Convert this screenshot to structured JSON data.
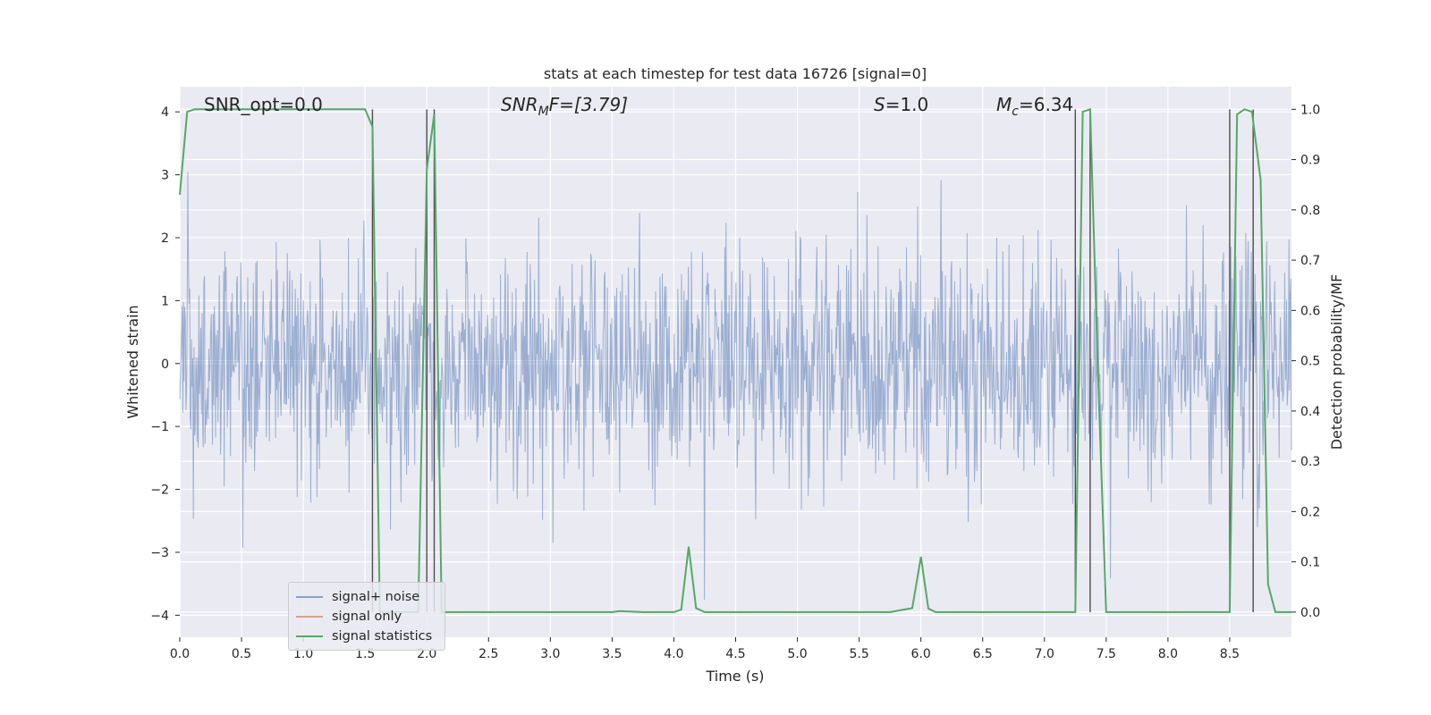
{
  "chart_data": {
    "type": "line",
    "title": "stats at each timestep for test data 16726 [signal=0]",
    "xlabel": "Time (s)",
    "ylabel_left": "Whitened strain",
    "ylabel_right": "Detection probability/MF",
    "xlim": [
      0.0,
      9.0
    ],
    "ylim_left": [
      -4.35,
      4.4
    ],
    "ylim_right": [
      -0.05,
      1.045
    ],
    "x_ticks": [
      "0.0",
      "0.5",
      "1.0",
      "1.5",
      "2.0",
      "2.5",
      "3.0",
      "3.5",
      "4.0",
      "4.5",
      "5.0",
      "5.5",
      "6.0",
      "6.5",
      "7.0",
      "7.5",
      "8.0",
      "8.5"
    ],
    "y_ticks_left": [
      "−4",
      "−3",
      "−2",
      "−1",
      "0",
      "1",
      "2",
      "3",
      "4"
    ],
    "y_ticks_right": [
      "0.0",
      "0.1",
      "0.2",
      "0.3",
      "0.4",
      "0.5",
      "0.6",
      "0.7",
      "0.8",
      "0.9",
      "1.0"
    ],
    "grid": true,
    "legend_position": "lower-left",
    "colors": {
      "signal_noise": "#4c72b0",
      "signal_only": "#dd8452",
      "signal_statistics": "#55a868",
      "vlines": "#4d4d4d",
      "background": "#eaeaf2",
      "grid": "#ffffff"
    },
    "annotations": {
      "snr_opt": "SNR_opt=0.0",
      "snr_mf_base": "SNR",
      "snr_mf_sub": "M",
      "snr_mf_rest": "F=[3.79]",
      "s_italic": "S",
      "s_rest": "=1.0",
      "mc_base": "M",
      "mc_sub": "c",
      "mc_rest": "=6.34"
    },
    "noise_envelope": {
      "description_free": "",
      "typical_abs_max": 2.3,
      "peak_abs": 3.95,
      "duration": 9.0
    },
    "series": [
      {
        "name": "signal+ noise",
        "style": "dense-noise"
      },
      {
        "name": "signal only",
        "x": [],
        "y": []
      },
      {
        "name": "signal statistics",
        "axis": "right",
        "x": [
          0.0,
          0.06,
          0.12,
          0.25,
          0.5,
          0.75,
          1.0,
          1.25,
          1.5,
          1.56,
          1.62,
          1.68,
          1.75,
          1.81,
          1.87,
          1.93,
          2.0,
          2.06,
          2.12,
          2.18,
          2.25,
          2.5,
          2.75,
          3.0,
          3.25,
          3.5,
          3.56,
          3.75,
          4.0,
          4.06,
          4.12,
          4.18,
          4.25,
          4.5,
          4.75,
          5.0,
          5.25,
          5.5,
          5.75,
          5.93,
          6.0,
          6.06,
          6.12,
          6.25,
          6.5,
          6.75,
          7.0,
          7.25,
          7.31,
          7.37,
          7.43,
          7.5,
          7.75,
          8.0,
          8.25,
          8.5,
          8.56,
          8.62,
          8.68,
          8.75,
          8.81,
          8.87,
          8.93,
          9.0
        ],
        "y": [
          0.83,
          0.995,
          1.0,
          1.0,
          1.0,
          1.0,
          1.0,
          1.0,
          1.0,
          0.965,
          0.0,
          0.0,
          0.0,
          0.0,
          0.0,
          0.0,
          0.88,
          0.99,
          0.0,
          0.0,
          0.0,
          0.0,
          0.0,
          0.0,
          0.0,
          0.0,
          0.002,
          0.0,
          0.0,
          0.005,
          0.13,
          0.008,
          0.0,
          0.0,
          0.0,
          0.0,
          0.0,
          0.0,
          0.0,
          0.008,
          0.11,
          0.007,
          0.0,
          0.0,
          0.0,
          0.0,
          0.0,
          0.0,
          0.995,
          1.0,
          0.5,
          0.0,
          0.0,
          0.0,
          0.0,
          0.0,
          0.99,
          1.0,
          0.995,
          0.86,
          0.055,
          0.0,
          0.0,
          0.0
        ]
      }
    ],
    "vlines_x": [
      1.56,
      2.0,
      2.06,
      7.25,
      7.37,
      8.5,
      8.69
    ]
  },
  "legend": {
    "items": [
      {
        "label": "signal+ noise",
        "color": "#8da0cb"
      },
      {
        "label": "signal only",
        "color": "#e0a080"
      },
      {
        "label": "signal statistics",
        "color": "#55a868"
      }
    ]
  }
}
